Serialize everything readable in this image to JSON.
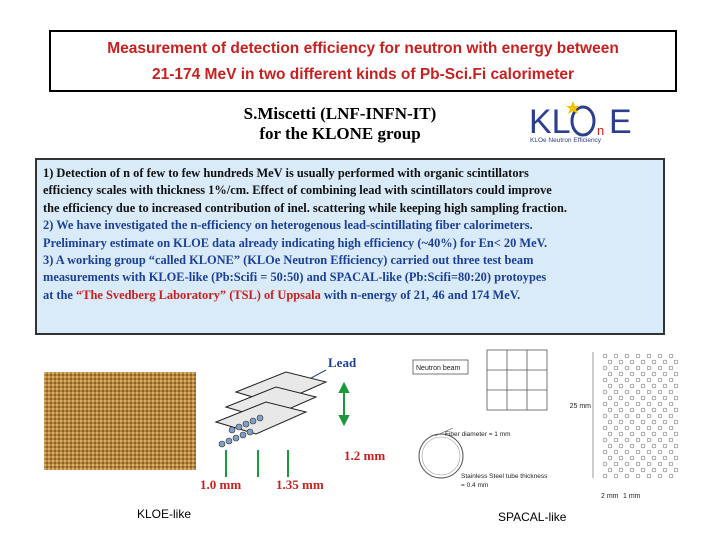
{
  "title": {
    "line1": "Measurement of detection efficiency for neutron with energy between",
    "line2": "21-174 MeV in two different kinds of  Pb-Sci.Fi calorimeter"
  },
  "author": {
    "line1": "S.Miscetti (LNF-INFN-IT)",
    "line2": "for the KLONE group"
  },
  "logo": {
    "mark": "KLOnE",
    "subtitle": "KLOe Neutron Efficiency",
    "colors": {
      "letters": "#2b3f8f",
      "star": "#f2c200"
    }
  },
  "info": {
    "p1_l1": "1) Detection of n of few to few hundreds MeV is usually performed with organic scintillators",
    "p1_l2": "efficiency scales with thickness  1%/cm. Effect of combining lead with scintillators could  improve",
    "p1_l3": "the efficiency due to increased contribution of inel. scattering while keeping high sampling fraction.",
    "p2_l1": "2) We have investigated the n-efficiency on heterogenous lead-scintillating fiber calorimeters.",
    "p2_l2": "Preliminary estimate on KLOE data already indicating high efficiency (~40%) for En< 20 MeV.",
    "p3_l1": "3) A working group “called KLONE” (KLOe Neutron Efficiency)  carried out three test beam",
    "p3_l2": "measurements with KLOE-like (Pb:Scifi = 50:50) and SPACAL-like (Pb:Scifi=80:20)  protoypes",
    "p3_l3_pre": "at the ",
    "p3_l3_red": " “The Svedberg Laboratory” (TSL) of Uppsala ",
    "p3_l3_post": "with n-energy of 21, 46 and 174 MeV."
  },
  "figures": {
    "kloe_label_lead": "Lead",
    "kloe_dim_12": "1.2 mm",
    "kloe_dim_10": "1.0 mm",
    "kloe_dim_135": "1.35 mm",
    "spacal_neutron_beam": "Neutron beam",
    "spacal_fiber_diameter": "Fiber diameter = 1 mm",
    "spacal_tube_l1": "Stainless Steel tube thickness",
    "spacal_tube_l2": "= 0.4 mm",
    "spacal_dim_25": "25 mm",
    "spacal_dim_2": "2 mm",
    "spacal_dim_1": "1 mm"
  },
  "captions": {
    "kloe": "KLOE-like",
    "spacal": "SPACAL-like"
  },
  "colors": {
    "title_red": "#c8201e",
    "text_blue": "#1c3f99",
    "box_bg": "#d9ebf8",
    "fiber_gold": "#b8873f",
    "arrow_green": "#1a9a3a"
  }
}
